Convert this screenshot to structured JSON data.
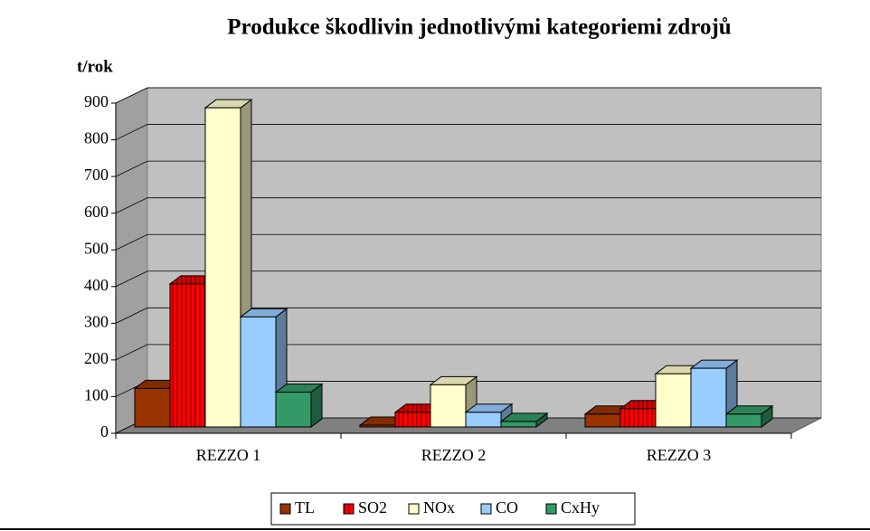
{
  "chart_data": {
    "type": "bar3d",
    "title": "Produkce škodlivin  jednotlivými kategoriemi zdrojů",
    "y_label": "t/rok",
    "categories": [
      "REZZO 1",
      "REZZO 2",
      "REZZO 3"
    ],
    "series": [
      {
        "name": "TL",
        "color": "#993300",
        "values": [
          105,
          5,
          35
        ]
      },
      {
        "name": "SO2",
        "color": "#ff0000",
        "pattern": "vertical-lines",
        "values": [
          390,
          40,
          50
        ]
      },
      {
        "name": "NOx",
        "color": "#ffffcc",
        "values": [
          870,
          115,
          145
        ]
      },
      {
        "name": "CO",
        "color": "#99ccff",
        "values": [
          300,
          40,
          160
        ]
      },
      {
        "name": "CxHy",
        "color": "#339966",
        "values": [
          95,
          15,
          35
        ]
      }
    ],
    "ylim": [
      0,
      900
    ],
    "yticks": [
      0,
      100,
      200,
      300,
      400,
      500,
      600,
      700,
      800,
      900
    ],
    "grid": true,
    "legend": "bottom"
  }
}
